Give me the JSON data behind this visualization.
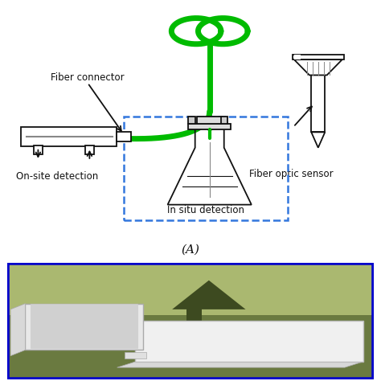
{
  "title_A": "(A)",
  "label_fiber_connector": "Fiber connector",
  "label_onsite": "On-site detection",
  "label_insitu": "In situ detection",
  "label_fiber_optic": "Fiber optic sensor",
  "bg_color": "#ffffff",
  "green_color": "#00bb00",
  "dashed_box_color": "#3377dd",
  "line_color": "#111111",
  "gray_color": "#888888",
  "font_size": 8.5,
  "photo_border_color": "#0000cc",
  "lw_green": 5,
  "lw_black": 1.3
}
